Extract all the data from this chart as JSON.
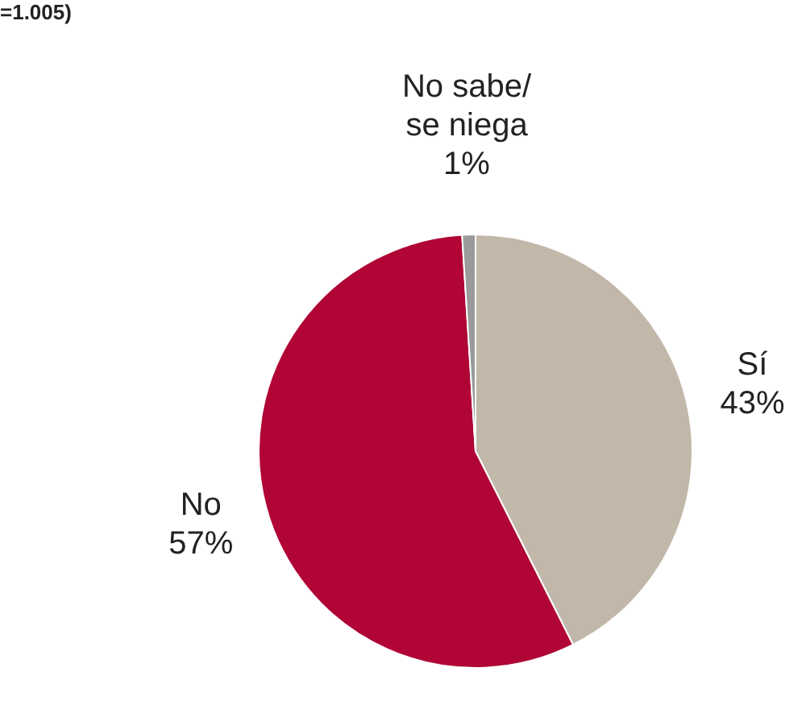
{
  "chart_data": {
    "type": "pie",
    "categories": [
      "Sí",
      "No",
      "No sabe/ se niega"
    ],
    "values": [
      43,
      57,
      1
    ],
    "colors": [
      "#c2b8aa",
      "#b00535",
      "#9a9a9a"
    ],
    "value_labels": [
      "43%",
      "57%",
      "1%"
    ],
    "annotations": [
      "=1.005)"
    ],
    "legend": false
  }
}
